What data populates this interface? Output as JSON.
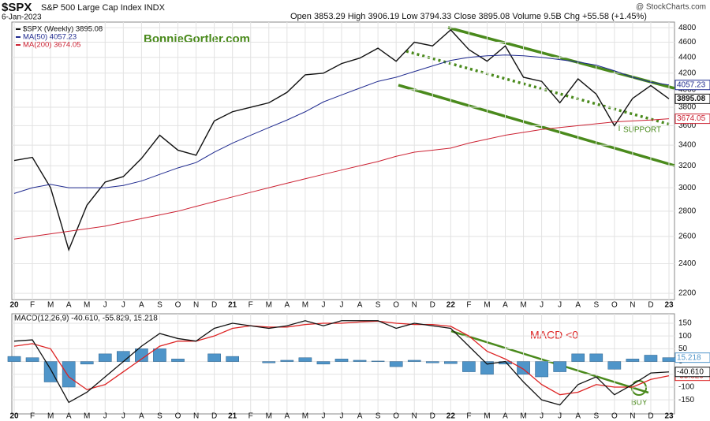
{
  "chart_data": [
    {
      "type": "line",
      "title": "$SPX",
      "subtitle": "S&P 500 Large Cap Index INDX",
      "date": "6-Jan-2023",
      "quote": "Open 3853.29 High 3906.19 Low 3794.33 Close 3895.08 Volume 9.5B Chg +55.58 (+1.45%)",
      "source": "@ StockCharts.com",
      "watermark": "BonnieGortler.com",
      "annotations": [
        "SUPPORT"
      ],
      "log_scale": true,
      "grid": true,
      "categories": [
        "20",
        "F",
        "M",
        "A",
        "M",
        "J",
        "J",
        "A",
        "S",
        "O",
        "N",
        "D",
        "21",
        "F",
        "M",
        "A",
        "M",
        "J",
        "J",
        "A",
        "S",
        "O",
        "N",
        "D",
        "22",
        "F",
        "M",
        "A",
        "M",
        "J",
        "J",
        "A",
        "S",
        "O",
        "N",
        "D",
        "23"
      ],
      "ylim": [
        2160,
        4880
      ],
      "yticks": [
        2200,
        2400,
        2600,
        2800,
        3000,
        3200,
        3400,
        3600,
        3800,
        4000,
        4200,
        4400,
        4600,
        4800
      ],
      "series": [
        {
          "name": "$SPX (Weekly) 3895.08",
          "color": "#111111",
          "width": 1.4,
          "values": [
            3250,
            3280,
            3000,
            2500,
            2850,
            3050,
            3100,
            3270,
            3500,
            3350,
            3300,
            3650,
            3750,
            3800,
            3850,
            3970,
            4180,
            4200,
            4320,
            4390,
            4520,
            4350,
            4600,
            4550,
            4770,
            4500,
            4350,
            4550,
            4150,
            4100,
            3850,
            4130,
            3950,
            3600,
            3900,
            4050,
            3895.08
          ]
        },
        {
          "name": "MA(50) 4057.23",
          "color": "#1f2a8f",
          "width": 1,
          "values": [
            2950,
            3000,
            3030,
            3000,
            3000,
            3000,
            3020,
            3060,
            3120,
            3180,
            3230,
            3330,
            3420,
            3500,
            3580,
            3660,
            3750,
            3860,
            3940,
            4020,
            4100,
            4150,
            4220,
            4290,
            4360,
            4400,
            4420,
            4430,
            4420,
            4400,
            4370,
            4340,
            4300,
            4230,
            4150,
            4090,
            4057.23
          ]
        },
        {
          "name": "MA(200) 3674.05",
          "color": "#cc2233",
          "width": 1,
          "values": [
            2580,
            2600,
            2620,
            2640,
            2660,
            2680,
            2710,
            2740,
            2770,
            2800,
            2840,
            2880,
            2920,
            2960,
            3000,
            3040,
            3080,
            3120,
            3160,
            3200,
            3240,
            3290,
            3330,
            3350,
            3370,
            3420,
            3460,
            3500,
            3530,
            3560,
            3580,
            3600,
            3620,
            3640,
            3650,
            3660,
            3674.05
          ]
        }
      ]
    },
    {
      "type": "macd",
      "title": "MACD(12,26,9) -40.610, -55.829, 15.218",
      "annotations": [
        "MACD <0",
        "BUY"
      ],
      "grid": true,
      "categories": [
        "20",
        "F",
        "M",
        "A",
        "M",
        "J",
        "J",
        "A",
        "S",
        "O",
        "N",
        "D",
        "21",
        "F",
        "M",
        "A",
        "M",
        "J",
        "J",
        "A",
        "S",
        "O",
        "N",
        "D",
        "22",
        "F",
        "M",
        "A",
        "M",
        "J",
        "J",
        "A",
        "S",
        "O",
        "N",
        "D",
        "23"
      ],
      "ylim": [
        -205,
        187
      ],
      "yticks": [
        -150,
        -100,
        -50,
        0,
        50,
        100,
        150
      ],
      "series": [
        {
          "name": "Histogram",
          "style": "bar",
          "color": "#4f95c9",
          "values": [
            20,
            15,
            -80,
            -100,
            -10,
            30,
            40,
            50,
            50,
            10,
            0,
            30,
            20,
            0,
            -5,
            5,
            15,
            -10,
            10,
            5,
            2,
            -20,
            5,
            -5,
            -8,
            -40,
            -50,
            -10,
            -50,
            -60,
            -40,
            30,
            30,
            -30,
            10,
            25,
            15.218
          ]
        },
        {
          "name": "Signal",
          "style": "line",
          "color": "#dd2222",
          "values": [
            60,
            70,
            50,
            -60,
            -110,
            -90,
            -40,
            10,
            60,
            80,
            80,
            100,
            130,
            140,
            135,
            135,
            145,
            150,
            150,
            155,
            158,
            150,
            145,
            145,
            138,
            100,
            40,
            10,
            -30,
            -90,
            -130,
            -120,
            -90,
            -100,
            -100,
            -70,
            -55.829
          ]
        },
        {
          "name": "MACD",
          "style": "line",
          "color": "#111111",
          "end_label": "-40.610",
          "values": [
            80,
            85,
            -30,
            -160,
            -120,
            -60,
            0,
            60,
            110,
            90,
            80,
            130,
            150,
            140,
            130,
            140,
            160,
            140,
            160,
            160,
            160,
            130,
            150,
            140,
            130,
            60,
            -10,
            0,
            -80,
            -150,
            -170,
            -90,
            -60,
            -130,
            -90,
            -45,
            -40.61
          ]
        }
      ]
    }
  ]
}
